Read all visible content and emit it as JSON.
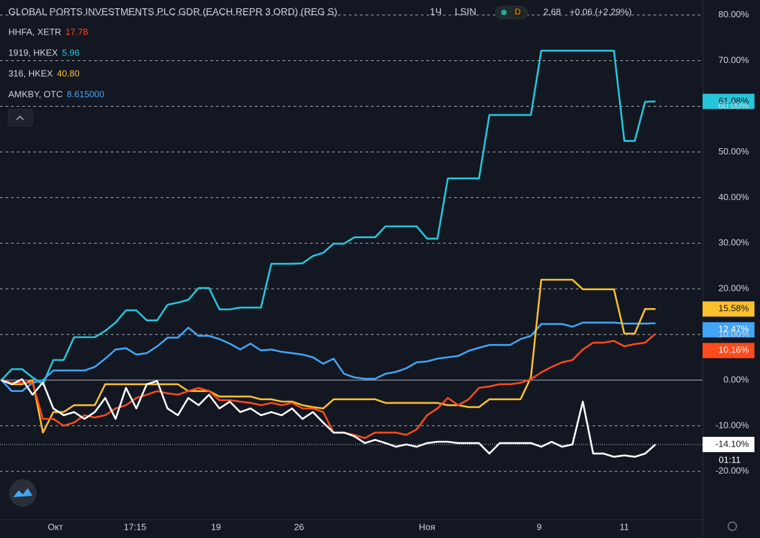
{
  "chart_data": {
    "type": "line",
    "title": "GLOBAL PORTS INVESTMENTS PLC GDR (EACH REPR 3 ORD) (REG S)",
    "interval": "1Ч",
    "exchange": "LSIN",
    "badge": "D",
    "price": "2.68",
    "change": "+0.06 (+2.29%)",
    "countdown": "01:11",
    "grid": true,
    "x": [
      0,
      1,
      2,
      3,
      4,
      5,
      6,
      7,
      8,
      9,
      10,
      11,
      12,
      13,
      14,
      15,
      16,
      17,
      18,
      19,
      20,
      21,
      22,
      23,
      24,
      25,
      26,
      27,
      28,
      29,
      30,
      31,
      32,
      33,
      34,
      35,
      36,
      37,
      38,
      39,
      40,
      41,
      42,
      43,
      44,
      45,
      46,
      47,
      48,
      49,
      50,
      51,
      52,
      53,
      54,
      55,
      56,
      57,
      58,
      59,
      60,
      61,
      62,
      63
    ],
    "xlim": [
      -0.133,
      67.533
    ],
    "xticks": [
      {
        "value": 5.2,
        "label": "Окт"
      },
      {
        "value": 12.87,
        "label": "17:15"
      },
      {
        "value": 20.67,
        "label": "19"
      },
      {
        "value": 28.67,
        "label": "26"
      },
      {
        "value": 41,
        "label": "Ноя"
      },
      {
        "value": 51.8,
        "label": "9"
      },
      {
        "value": 60,
        "label": "11"
      }
    ],
    "ylim": [
      -30.5,
      83.3
    ],
    "yticks": [
      {
        "value": 80,
        "label": "80.00%"
      },
      {
        "value": 70,
        "label": "70.00%"
      },
      {
        "value": 60,
        "label": "60.00%"
      },
      {
        "value": 50,
        "label": "50.00%"
      },
      {
        "value": 40,
        "label": "40.00%"
      },
      {
        "value": 30,
        "label": "30.00%"
      },
      {
        "value": 20,
        "label": "20.00%"
      },
      {
        "value": 10,
        "label": "10.00%"
      },
      {
        "value": 0,
        "label": "0.00%"
      },
      {
        "value": -10,
        "label": "-10.00%"
      },
      {
        "value": -20,
        "label": "-20.00%"
      }
    ],
    "series": [
      {
        "name": "1919, HKEX",
        "price": "5.96",
        "color": "#26c6da",
        "text_color": "#131722",
        "last_label": "61.08%",
        "values": [
          0,
          2.4,
          2.4,
          0.6,
          -0.9,
          4.4,
          4.4,
          9.4,
          9.4,
          9.4,
          10.8,
          12.6,
          15.3,
          15.3,
          13.1,
          13.1,
          16.5,
          17.0,
          17.6,
          20.2,
          20.2,
          15.5,
          15.5,
          15.9,
          15.9,
          15.9,
          25.5,
          25.5,
          25.5,
          25.6,
          27.2,
          27.9,
          29.9,
          29.9,
          31.3,
          31.3,
          31.3,
          33.7,
          33.7,
          33.7,
          33.7,
          31.0,
          31.0,
          44.2,
          44.2,
          44.2,
          44.2,
          58.1,
          58.1,
          58.1,
          58.1,
          58.1,
          72.2,
          72.2,
          72.2,
          72.2,
          72.2,
          72.2,
          72.2,
          72.2,
          52.4,
          52.4,
          61.0,
          61.08
        ]
      },
      {
        "name": "AMKBY, OTC",
        "price": "8.615000",
        "color": "#42a5f5",
        "text_color": "#ffffff",
        "last_label": "12.47%",
        "values": [
          0,
          -2.4,
          -2.4,
          -0.6,
          0,
          2.1,
          2.1,
          2.1,
          2.1,
          2.9,
          4.7,
          6.7,
          7.0,
          5.6,
          5.9,
          7.4,
          9.3,
          9.3,
          11.5,
          9.7,
          9.7,
          9.0,
          8.0,
          6.7,
          8.0,
          6.5,
          6.7,
          6.2,
          5.9,
          5.6,
          5.0,
          3.6,
          4.7,
          1.4,
          0.6,
          0.3,
          0.3,
          1.4,
          1.8,
          2.6,
          3.9,
          4.1,
          4.7,
          5.0,
          5.3,
          6.4,
          7.1,
          7.7,
          7.7,
          7.7,
          9.0,
          9.7,
          12.3,
          12.3,
          12.3,
          11.7,
          12.6,
          12.6,
          12.6,
          12.6,
          12.4,
          12.4,
          12.4,
          12.47
        ]
      },
      {
        "name": "316, HKEX",
        "price": "40.80",
        "color": "#fbc02d",
        "text_color": "#131722",
        "last_label": "15.58%",
        "values": [
          0,
          -0.9,
          -0.9,
          0,
          -11.5,
          -7.0,
          -7.0,
          -5.5,
          -5.5,
          -5.5,
          -0.9,
          -0.9,
          -0.9,
          -0.9,
          -0.9,
          -0.9,
          -0.9,
          -0.9,
          -2.4,
          -2.4,
          -2.4,
          -3.6,
          -3.6,
          -3.6,
          -3.6,
          -4.2,
          -4.2,
          -4.7,
          -4.7,
          -5.5,
          -5.9,
          -6.2,
          -4.2,
          -4.2,
          -4.2,
          -4.2,
          -4.2,
          -5.0,
          -5.0,
          -5.0,
          -5.0,
          -5.0,
          -5.0,
          -5.5,
          -5.5,
          -5.9,
          -5.9,
          -4.2,
          -4.2,
          -4.2,
          -4.2,
          0.6,
          22.0,
          22.0,
          22.0,
          22.0,
          19.9,
          19.9,
          19.9,
          19.9,
          10.2,
          10.2,
          15.6,
          15.58
        ]
      },
      {
        "name": "HHFA, XETR",
        "price": "17.78",
        "color": "#ff4a1c",
        "text_color": "#ffffff",
        "last_label": "10.16%",
        "values": [
          0,
          -0.6,
          -0.6,
          -0.6,
          -8.5,
          -8.5,
          -10.0,
          -9.3,
          -7.7,
          -8.2,
          -7.7,
          -6.2,
          -5.5,
          -3.9,
          -3.2,
          -2.4,
          -2.9,
          -3.2,
          -2.4,
          -1.7,
          -2.4,
          -4.4,
          -4.4,
          -4.7,
          -5.0,
          -5.5,
          -5.0,
          -5.5,
          -5.0,
          -6.2,
          -6.2,
          -7.0,
          -11.5,
          -11.5,
          -12.0,
          -12.7,
          -11.5,
          -11.5,
          -11.5,
          -12.0,
          -10.8,
          -7.7,
          -6.2,
          -3.9,
          -5.5,
          -4.2,
          -1.7,
          -1.4,
          -0.9,
          -0.9,
          -0.6,
          0.2,
          1.7,
          2.9,
          3.9,
          4.4,
          6.7,
          8.2,
          8.2,
          8.6,
          7.4,
          7.9,
          8.2,
          10.16
        ]
      },
      {
        "color": "#ffffff",
        "text_color": "#131722",
        "last_label": "-14.10%",
        "values": [
          0,
          -0.9,
          0.2,
          -3.2,
          -0.5,
          -6.2,
          -7.7,
          -7.0,
          -8.5,
          -7.0,
          -3.9,
          -8.5,
          -1.7,
          -6.2,
          -0.9,
          -0.2,
          -6.2,
          -7.7,
          -3.9,
          -5.5,
          -3.2,
          -6.2,
          -4.7,
          -7.0,
          -6.2,
          -7.7,
          -7.0,
          -7.7,
          -6.2,
          -8.5,
          -7.0,
          -9.3,
          -11.5,
          -11.5,
          -12.3,
          -13.8,
          -13.1,
          -13.8,
          -14.6,
          -14.1,
          -14.6,
          -13.8,
          -13.5,
          -13.5,
          -13.8,
          -13.8,
          -13.8,
          -16.1,
          -13.8,
          -13.8,
          -13.8,
          -13.8,
          -14.6,
          -13.5,
          -14.6,
          -14.1,
          -4.7,
          -16.1,
          -16.1,
          -16.8,
          -16.5,
          -16.8,
          -16.1,
          -14.1
        ]
      }
    ],
    "legend_order": [
      3,
      0,
      2,
      1
    ]
  }
}
